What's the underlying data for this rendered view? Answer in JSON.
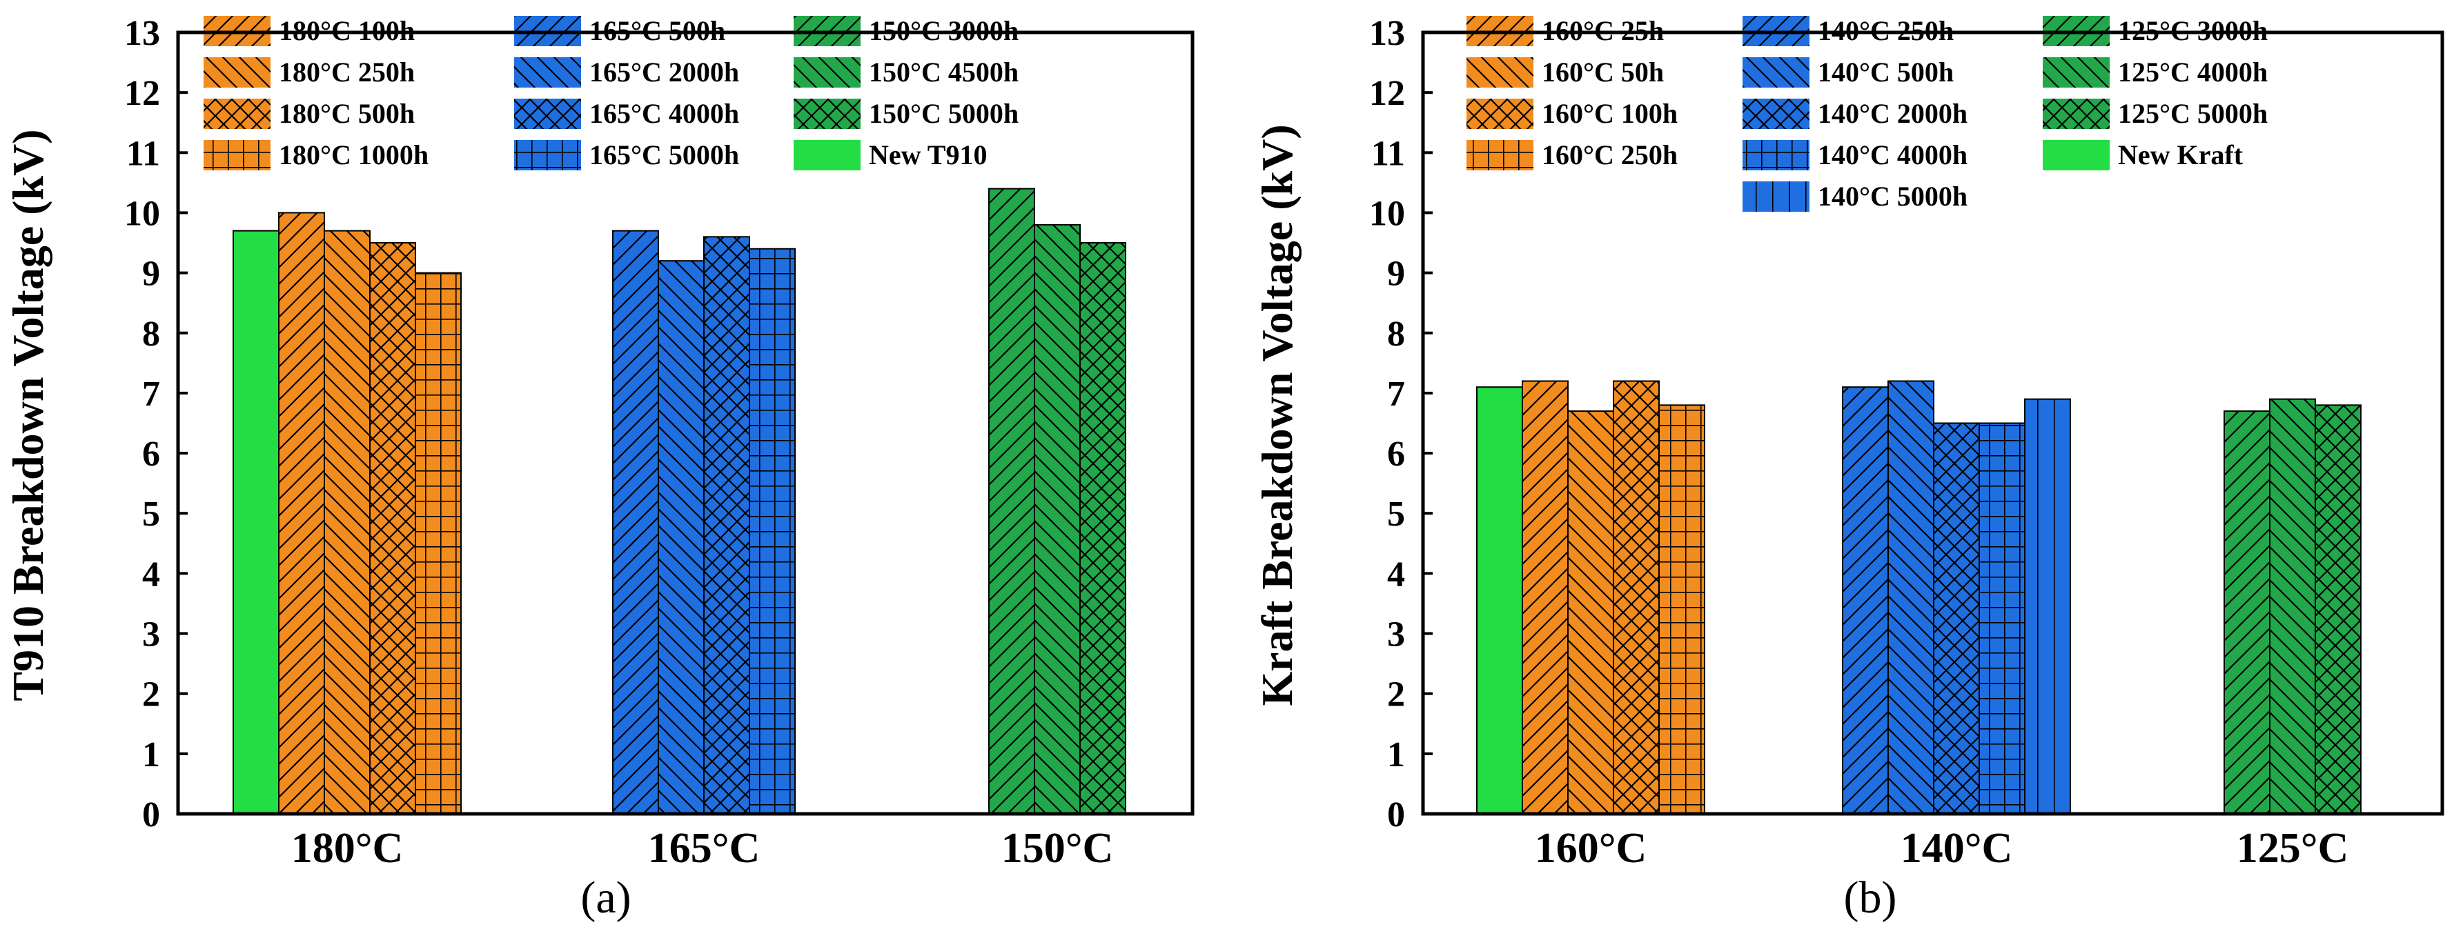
{
  "colors": {
    "orange": "#f28c1f",
    "blue": "#1f6fe0",
    "green": "#22a84a",
    "new": "#22dd44"
  },
  "chart_data": [
    {
      "type": "bar",
      "caption": "(a)",
      "ylabel": "T910 Breakdown Voltage (kV)",
      "ylim": [
        0,
        13
      ],
      "yticks": [
        "0",
        "1",
        "2",
        "3",
        "4",
        "5",
        "6",
        "7",
        "8",
        "9",
        "10",
        "11",
        "12",
        "13"
      ],
      "groups": [
        {
          "category": "180°C",
          "bars": [
            {
              "label": "New T910",
              "value": 9.7,
              "color": "new",
              "pattern": "none"
            },
            {
              "label": "180°C 100h",
              "value": 10.0,
              "color": "orange",
              "pattern": "fdiag"
            },
            {
              "label": "180°C 250h",
              "value": 9.7,
              "color": "orange",
              "pattern": "bdiag"
            },
            {
              "label": "180°C 500h",
              "value": 9.5,
              "color": "orange",
              "pattern": "cross"
            },
            {
              "label": "180°C 1000h",
              "value": 9.0,
              "color": "orange",
              "pattern": "grid"
            }
          ]
        },
        {
          "category": "165°C",
          "bars": [
            {
              "label": "165°C 500h",
              "value": 9.7,
              "color": "blue",
              "pattern": "fdiag"
            },
            {
              "label": "165°C 2000h",
              "value": 9.2,
              "color": "blue",
              "pattern": "bdiag"
            },
            {
              "label": "165°C 4000h",
              "value": 9.6,
              "color": "blue",
              "pattern": "cross"
            },
            {
              "label": "165°C 5000h",
              "value": 9.4,
              "color": "blue",
              "pattern": "grid"
            }
          ]
        },
        {
          "category": "150°C",
          "bars": [
            {
              "label": "150°C 3000h",
              "value": 10.4,
              "color": "green",
              "pattern": "fdiag"
            },
            {
              "label": "150°C 4500h",
              "value": 9.8,
              "color": "green",
              "pattern": "bdiag"
            },
            {
              "label": "150°C 5000h",
              "value": 9.5,
              "color": "green",
              "pattern": "cross"
            }
          ]
        }
      ],
      "legend": [
        [
          {
            "label": "180°C 100h",
            "color": "orange",
            "pattern": "fdiag"
          },
          {
            "label": "180°C 250h",
            "color": "orange",
            "pattern": "bdiag"
          },
          {
            "label": "180°C 500h",
            "color": "orange",
            "pattern": "cross"
          },
          {
            "label": "180°C 1000h",
            "color": "orange",
            "pattern": "grid"
          }
        ],
        [
          {
            "label": "165°C 500h",
            "color": "blue",
            "pattern": "fdiag"
          },
          {
            "label": "165°C 2000h",
            "color": "blue",
            "pattern": "bdiag"
          },
          {
            "label": "165°C 4000h",
            "color": "blue",
            "pattern": "cross"
          },
          {
            "label": "165°C 5000h",
            "color": "blue",
            "pattern": "grid"
          }
        ],
        [
          {
            "label": "150°C 3000h",
            "color": "green",
            "pattern": "fdiag"
          },
          {
            "label": "150°C 4500h",
            "color": "green",
            "pattern": "bdiag"
          },
          {
            "label": "150°C 5000h",
            "color": "green",
            "pattern": "cross"
          },
          {
            "label": "New T910",
            "color": "new",
            "pattern": "none"
          }
        ]
      ]
    },
    {
      "type": "bar",
      "caption": "(b)",
      "ylabel": "Kraft Breakdown Voltage (kV)",
      "ylim": [
        0,
        13
      ],
      "yticks": [
        "0",
        "1",
        "2",
        "3",
        "4",
        "5",
        "6",
        "7",
        "8",
        "9",
        "10",
        "11",
        "12",
        "13"
      ],
      "groups": [
        {
          "category": "160°C",
          "bars": [
            {
              "label": "New Kraft",
              "value": 7.1,
              "color": "new",
              "pattern": "none"
            },
            {
              "label": "160°C 25h",
              "value": 7.2,
              "color": "orange",
              "pattern": "fdiag"
            },
            {
              "label": "160°C 50h",
              "value": 6.7,
              "color": "orange",
              "pattern": "bdiag"
            },
            {
              "label": "160°C 100h",
              "value": 7.2,
              "color": "orange",
              "pattern": "cross"
            },
            {
              "label": "160°C 250h",
              "value": 6.8,
              "color": "orange",
              "pattern": "grid"
            }
          ]
        },
        {
          "category": "140°C",
          "bars": [
            {
              "label": "140°C 250h",
              "value": 7.1,
              "color": "blue",
              "pattern": "fdiag"
            },
            {
              "label": "140°C 500h",
              "value": 7.2,
              "color": "blue",
              "pattern": "bdiag"
            },
            {
              "label": "140°C 2000h",
              "value": 6.5,
              "color": "blue",
              "pattern": "cross"
            },
            {
              "label": "140°C 4000h",
              "value": 6.5,
              "color": "blue",
              "pattern": "grid"
            },
            {
              "label": "140°C 5000h",
              "value": 6.9,
              "color": "blue",
              "pattern": "vert"
            }
          ]
        },
        {
          "category": "125°C",
          "bars": [
            {
              "label": "125°C 3000h",
              "value": 6.7,
              "color": "green",
              "pattern": "fdiag"
            },
            {
              "label": "125°C 4000h",
              "value": 6.9,
              "color": "green",
              "pattern": "bdiag"
            },
            {
              "label": "125°C 5000h",
              "value": 6.8,
              "color": "green",
              "pattern": "cross"
            }
          ]
        }
      ],
      "legend": [
        [
          {
            "label": "160°C 25h",
            "color": "orange",
            "pattern": "fdiag"
          },
          {
            "label": "160°C 50h",
            "color": "orange",
            "pattern": "bdiag"
          },
          {
            "label": "160°C 100h",
            "color": "orange",
            "pattern": "cross"
          },
          {
            "label": "160°C 250h",
            "color": "orange",
            "pattern": "grid"
          }
        ],
        [
          {
            "label": "140°C 250h",
            "color": "blue",
            "pattern": "fdiag"
          },
          {
            "label": "140°C 500h",
            "color": "blue",
            "pattern": "bdiag"
          },
          {
            "label": "140°C 2000h",
            "color": "blue",
            "pattern": "cross"
          },
          {
            "label": "140°C 4000h",
            "color": "blue",
            "pattern": "grid"
          },
          {
            "label": "140°C 5000h",
            "color": "blue",
            "pattern": "vert"
          }
        ],
        [
          {
            "label": "125°C 3000h",
            "color": "green",
            "pattern": "fdiag"
          },
          {
            "label": "125°C 4000h",
            "color": "green",
            "pattern": "bdiag"
          },
          {
            "label": "125°C 5000h",
            "color": "green",
            "pattern": "cross"
          },
          {
            "label": "New Kraft",
            "color": "new",
            "pattern": "none"
          }
        ]
      ]
    }
  ]
}
